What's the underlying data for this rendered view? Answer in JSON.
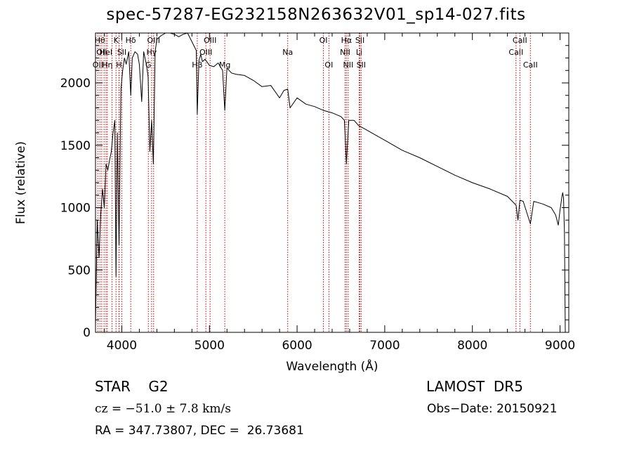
{
  "title": "spec-57287-EG232158N263632V01_sp14-027.fits",
  "info": {
    "object": "STAR    G2",
    "survey": "LAMOST  DR5",
    "cz": "cz = −51.0 ± 7.8 km/s",
    "obs_date": "Obs−Date: 20150921",
    "radec": "RA = 347.73807, DEC =  26.73681"
  },
  "colors": {
    "line_marker": "#c00000",
    "spectrum": "#000000",
    "axis": "#000000"
  },
  "chart_data": {
    "type": "line",
    "xlabel": "Wavelength (Å)",
    "ylabel": "Flux (relative)",
    "xlim": [
      3700,
      9100
    ],
    "ylim": [
      0,
      2400
    ],
    "x_ticks": [
      4000,
      5000,
      6000,
      7000,
      8000,
      9000
    ],
    "x_tick_labels": [
      "4000",
      "5000",
      "6000",
      "7000",
      "8000",
      "9000"
    ],
    "y_ticks": [
      0,
      500,
      1000,
      1500,
      2000
    ],
    "y_tick_labels": [
      "0",
      "500",
      "1000",
      "1500",
      "2000"
    ],
    "grid": false,
    "series": [
      {
        "x": [
          3700,
          3720,
          3740,
          3760,
          3780,
          3800,
          3820,
          3840,
          3860,
          3880,
          3900,
          3920,
          3934,
          3950,
          3968,
          3990,
          4010,
          4030,
          4050,
          4080,
          4102,
          4120,
          4150,
          4180,
          4200,
          4227,
          4250,
          4280,
          4300,
          4320,
          4340,
          4360,
          4380,
          4400,
          4450,
          4500,
          4550,
          4600,
          4650,
          4700,
          4750,
          4800,
          4850,
          4861,
          4880,
          4900,
          4920,
          4950,
          5000,
          5050,
          5100,
          5150,
          5175,
          5200,
          5250,
          5300,
          5400,
          5500,
          5600,
          5700,
          5800,
          5850,
          5893,
          5920,
          6000,
          6100,
          6200,
          6300,
          6400,
          6500,
          6540,
          6563,
          6590,
          6650,
          6700,
          6800,
          6900,
          7000,
          7200,
          7400,
          7600,
          7800,
          8000,
          8200,
          8400,
          8498,
          8520,
          8542,
          8580,
          8662,
          8700,
          8800,
          8900,
          8950,
          8980,
          9000,
          9020,
          9030,
          9040,
          9050,
          9060
        ],
        "y": [
          50,
          900,
          600,
          950,
          1150,
          1000,
          1350,
          1300,
          1380,
          1450,
          1600,
          1700,
          450,
          1600,
          700,
          1950,
          2100,
          2200,
          2150,
          2250,
          1900,
          2200,
          2250,
          2230,
          2150,
          1850,
          2250,
          2150,
          2050,
          1450,
          1700,
          1350,
          2250,
          2350,
          2380,
          2400,
          2400,
          2390,
          2370,
          2390,
          2400,
          2330,
          2260,
          1750,
          2180,
          2230,
          2170,
          2190,
          2140,
          2130,
          2160,
          2100,
          1780,
          2120,
          2080,
          2070,
          2060,
          2020,
          1970,
          1980,
          1880,
          1940,
          1950,
          1800,
          1880,
          1830,
          1810,
          1780,
          1760,
          1730,
          1700,
          1350,
          1700,
          1700,
          1660,
          1620,
          1580,
          1540,
          1460,
          1400,
          1330,
          1260,
          1200,
          1150,
          1090,
          1020,
          900,
          1060,
          1050,
          870,
          1050,
          1030,
          1000,
          940,
          860,
          980,
          1080,
          1120,
          1080,
          800,
          0
        ]
      }
    ],
    "line_markers": [
      {
        "x": 3727,
        "label": "OII",
        "row": 2
      },
      {
        "x": 3750,
        "label": "Hθ",
        "row": 0
      },
      {
        "x": 3771,
        "label": "OII",
        "row": 1
      },
      {
        "x": 3798,
        "label": "",
        "row": 0
      },
      {
        "x": 3820,
        "label": "HeI",
        "row": 1
      },
      {
        "x": 3835,
        "label": "Hη",
        "row": 2
      },
      {
        "x": 3889,
        "label": "",
        "row": 0
      },
      {
        "x": 3934,
        "label": "K",
        "row": 0
      },
      {
        "x": 3968,
        "label": "H",
        "row": 2
      },
      {
        "x": 3970,
        "label": "",
        "row": 0
      },
      {
        "x": 4000,
        "label": "SII",
        "row": 1
      },
      {
        "x": 4102,
        "label": "Hδ",
        "row": 0
      },
      {
        "x": 4303,
        "label": "G",
        "row": 2
      },
      {
        "x": 4340,
        "label": "Hγ",
        "row": 1
      },
      {
        "x": 4363,
        "label": "OIII",
        "row": 0
      },
      {
        "x": 4861,
        "label": "Hβ",
        "row": 2
      },
      {
        "x": 4959,
        "label": "OIII",
        "row": 1
      },
      {
        "x": 5007,
        "label": "OIII",
        "row": 0
      },
      {
        "x": 5175,
        "label": "Mg",
        "row": 2
      },
      {
        "x": 5893,
        "label": "Na",
        "row": 1
      },
      {
        "x": 6300,
        "label": "OI",
        "row": 0
      },
      {
        "x": 6363,
        "label": "OI",
        "row": 2
      },
      {
        "x": 6548,
        "label": "NII",
        "row": 1
      },
      {
        "x": 6563,
        "label": "Hα",
        "row": 0
      },
      {
        "x": 6583,
        "label": "NII",
        "row": 2
      },
      {
        "x": 6708,
        "label": "Li",
        "row": 1
      },
      {
        "x": 6717,
        "label": "SII",
        "row": 0
      },
      {
        "x": 6731,
        "label": "SII",
        "row": 2
      },
      {
        "x": 8498,
        "label": "CaII",
        "row": 1
      },
      {
        "x": 8542,
        "label": "CaII",
        "row": 0
      },
      {
        "x": 8662,
        "label": "CaII",
        "row": 2
      }
    ]
  }
}
